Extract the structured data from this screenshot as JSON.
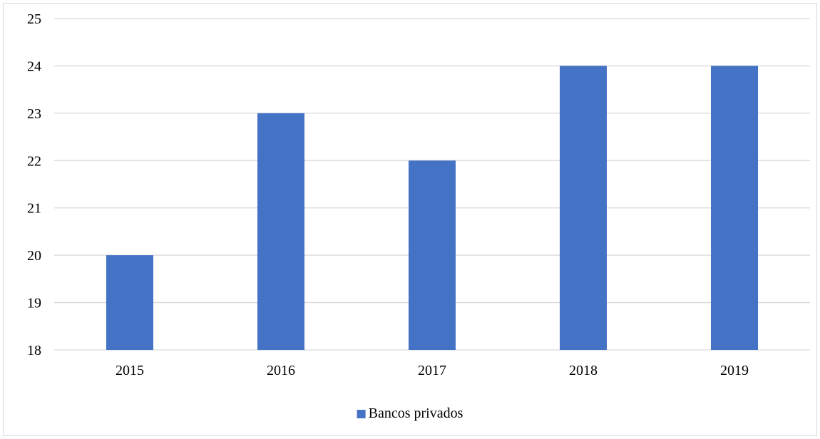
{
  "chart_data": {
    "type": "bar",
    "categories": [
      "2015",
      "2016",
      "2017",
      "2018",
      "2019"
    ],
    "series": [
      {
        "name": "Bancos privados",
        "values": [
          20,
          23,
          22,
          24,
          24
        ],
        "color": "#4472c4"
      }
    ],
    "ylim": [
      18,
      25
    ],
    "yticks": [
      18,
      19,
      20,
      21,
      22,
      23,
      24,
      25
    ],
    "grid": true,
    "gridColor": "#d9d9d9",
    "legend": "bottom-center",
    "title": "",
    "xlabel": "",
    "ylabel": ""
  }
}
